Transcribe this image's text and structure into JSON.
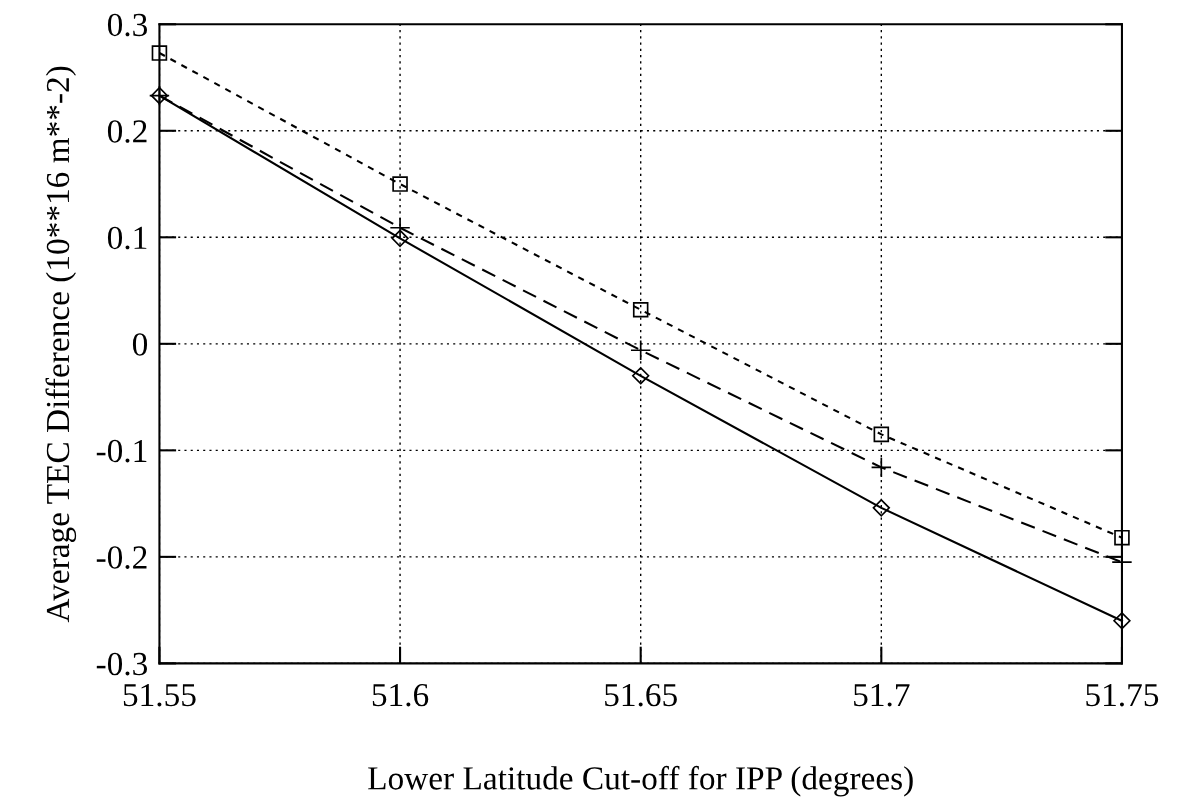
{
  "chart_data": {
    "type": "line",
    "xlabel": "Lower Latitude Cut-off for IPP (degrees)",
    "ylabel": "Average TEC Difference (10**16 m**-2)",
    "x": [
      51.55,
      51.6,
      51.65,
      51.7,
      51.75
    ],
    "series": [
      {
        "color": "#000000",
        "marker": "square",
        "line_style": "dotted",
        "values": [
          0.273,
          0.15,
          0.032,
          -0.085,
          -0.182
        ]
      },
      {
        "color": "#000000",
        "marker": "cross",
        "line_style": "dashed",
        "values": [
          0.233,
          0.109,
          -0.006,
          -0.116,
          -0.205
        ]
      },
      {
        "color": "#000000",
        "marker": "diamond",
        "line_style": "solid",
        "values": [
          0.233,
          0.099,
          -0.03,
          -0.154,
          -0.26
        ]
      }
    ],
    "xlim": [
      51.55,
      51.75
    ],
    "xticks": [
      51.55,
      51.6,
      51.65,
      51.7,
      51.75
    ],
    "ylim": [
      -0.3,
      0.3
    ],
    "yticks": [
      -0.3,
      -0.2,
      -0.1,
      0,
      0.1,
      0.2,
      0.3
    ],
    "grid": true
  }
}
